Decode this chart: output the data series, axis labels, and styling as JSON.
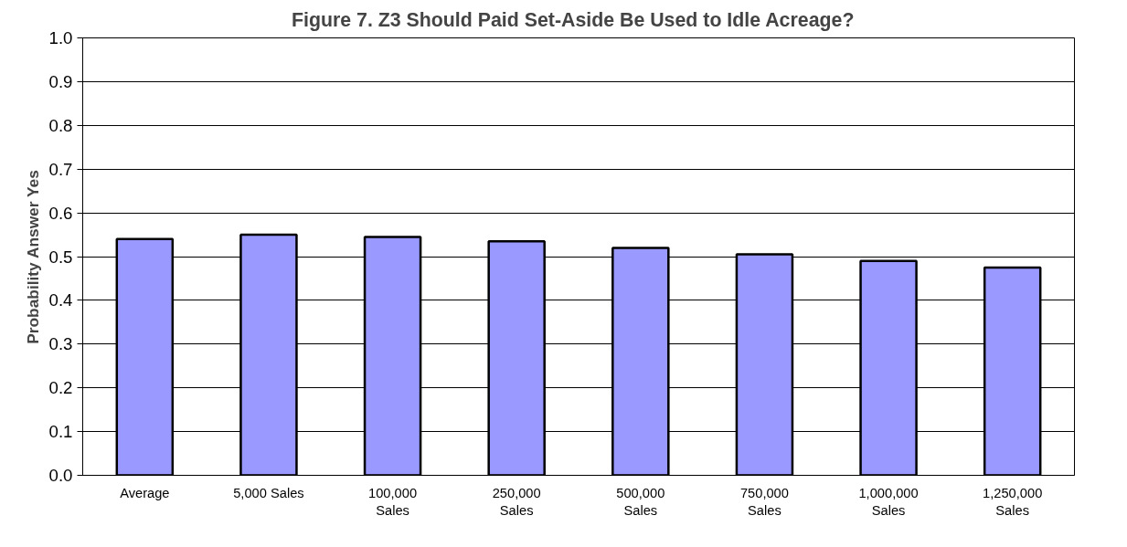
{
  "chart_data": {
    "type": "bar",
    "title": "Figure 7.  Z3  Should Paid Set-Aside Be Used to Idle Acreage?",
    "ylabel": "Probability Answer Yes",
    "categories": [
      "Average",
      "5,000 Sales",
      "100,000 Sales",
      "250,000 Sales",
      "500,000 Sales",
      "750,000 Sales",
      "1,000,000 Sales",
      "1,250,000 Sales"
    ],
    "values": [
      0.54,
      0.55,
      0.545,
      0.535,
      0.52,
      0.505,
      0.49,
      0.475
    ],
    "color": "#9999ff",
    "ylim": [
      0,
      1.0
    ],
    "yticks": [
      {
        "value": 0,
        "label": "0.0"
      },
      0.1,
      0.2,
      0.3,
      0.4,
      0.5,
      0.6,
      0.7,
      0.8,
      0.9,
      {
        "value": 1.0,
        "label": "1.0"
      }
    ],
    "grid": "y"
  }
}
